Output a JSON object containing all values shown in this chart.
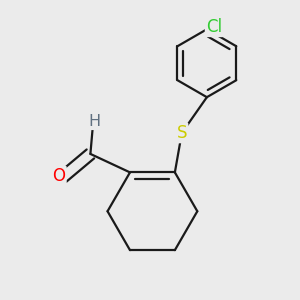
{
  "background_color": "#ebebeb",
  "bond_color": "#1a1a1a",
  "bond_width": 1.6,
  "atom_colors": {
    "O": "#ff0000",
    "S": "#cccc00",
    "Cl": "#33cc33",
    "H": "#607080",
    "C": "#1a1a1a"
  },
  "font_size_atom": 11.5,
  "figsize": [
    3.0,
    3.0
  ],
  "dpi": 100,
  "xlim": [
    -0.7,
    1.5
  ],
  "ylim": [
    -1.0,
    1.45
  ]
}
